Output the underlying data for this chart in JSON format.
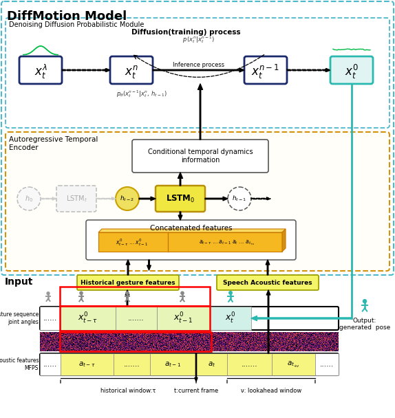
{
  "title": "DiffMotion Model",
  "ddpm_label": "Denoising Diffusion Probabilistic Module",
  "ate_label": "Autoregressive Temporal\nEncoder",
  "input_label": "Input",
  "diffusion_label": "Diffusion(training) process",
  "inference_label": "Inference process",
  "p_forward": "$p\\,(x_t^n|x_t^{n-1})$",
  "p_backward": "$p_\\theta(x_t^{n-1}|x_t^n,\\,h_{t-1})$",
  "box1_label": "$x_t^{\\lambda}$",
  "box2_label": "$x_t^{n}$",
  "box3_label": "$x_t^{n-1}$",
  "box4_label": "$x_t^{0}$",
  "h0_label": "$h_0$",
  "lstmt_label": "LSTM$_t$",
  "ht2_label": "$h_{t-2}$",
  "lstm0_label": "LSTM$_0$",
  "ht1_label": "$h_{t-1}$",
  "cond_label": "Conditional temporal dynamics\ninformation",
  "concat_label": "Concatenated features",
  "concat_left": "$x_{t-\\tau}^0$ ... $x_{t-1}^0$",
  "concat_right": "$a_{t-\\tau}$ ... $a_{t-1}$ $a_t$ ... $a_{t_{+\\nu}}$",
  "hist_gest_label": "Historical gesture features",
  "speech_ac_label": "Speech Acoustic features",
  "gest_seq_label": "Gesture sequence\njoint angles",
  "ac_feat_label": "Acoustic features\nMFPS",
  "output_label": "Output:\ngenerated  pose",
  "hist_window_label": "historical window:τ",
  "curr_frame_label": "t:current frame",
  "lookahead_label": "ν: lookahead window",
  "outer_color": "#4bb8cc",
  "ddpm_color": "#4bb8cc",
  "ate_color": "#d4920a",
  "box_dark": "#1a2a6c",
  "box_teal": "#2ab8b0",
  "teal_fill": "#e0f5f3",
  "yellow_fill": "#f0e840",
  "yellow_ht": "#f0e060",
  "orange_bar": "#f5b800",
  "yellow_label": "#e8e840",
  "fig_w": 5.74,
  "fig_h": 6.08,
  "dpi": 100
}
